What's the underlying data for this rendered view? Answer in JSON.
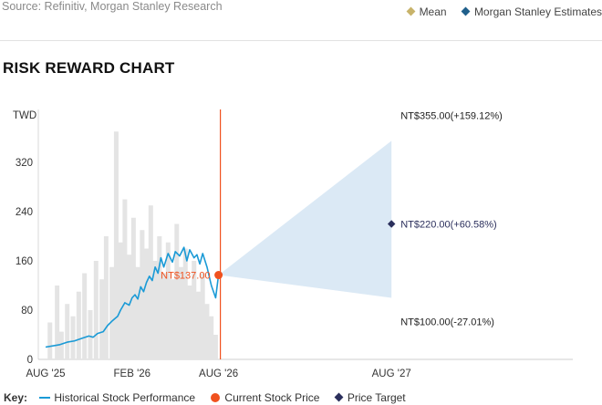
{
  "source": "Source: Refinitiv, Morgan Stanley Research",
  "top_legend": [
    {
      "label": "Mean",
      "color": "#c8b36a",
      "icon": "diamond-icon"
    },
    {
      "label": "Morgan Stanley Estimates",
      "color": "#1f5f8b",
      "icon": "diamond-icon"
    }
  ],
  "title": "RISK REWARD CHART",
  "key": {
    "label": "Key:",
    "items": [
      {
        "label": "Historical Stock Performance",
        "color": "#1a9ad6",
        "icon": "line-icon"
      },
      {
        "label": "Current Stock Price",
        "color": "#f0511e",
        "icon": "dot-icon"
      },
      {
        "label": "Price Target",
        "color": "#2b2f5c",
        "icon": "diamond-icon"
      }
    ]
  },
  "chart_data": {
    "type": "line",
    "ylabel": "TWD",
    "ylim": [
      0,
      400
    ],
    "yticks": [
      0,
      80,
      160,
      240,
      320
    ],
    "xticks": [
      "AUG '25",
      "FEB '26",
      "AUG '26",
      "AUG '27"
    ],
    "historical_price": {
      "name": "Historical Stock Performance",
      "x_months": [
        0,
        0.5,
        1,
        1.5,
        2,
        2.5,
        3,
        3.3,
        3.6,
        4,
        4.3,
        4.6,
        5,
        5.2,
        5.5,
        5.8,
        6,
        6.2,
        6.4,
        6.6,
        6.8,
        7,
        7.2,
        7.4,
        7.6,
        7.8,
        8,
        8.2,
        8.5,
        8.8,
        9,
        9.3,
        9.6,
        9.8,
        10,
        10.3,
        10.5,
        10.7,
        10.9,
        11.2,
        11.5,
        11.8,
        12
      ],
      "values": [
        20,
        22,
        24,
        28,
        30,
        34,
        38,
        36,
        42,
        45,
        55,
        62,
        70,
        80,
        92,
        88,
        100,
        105,
        98,
        118,
        110,
        125,
        135,
        128,
        150,
        140,
        165,
        150,
        172,
        158,
        175,
        168,
        182,
        160,
        178,
        165,
        170,
        155,
        172,
        150,
        120,
        100,
        137
      ]
    },
    "volume_bars": {
      "x_months": [
        0.3,
        0.8,
        1.1,
        1.5,
        1.9,
        2.3,
        2.7,
        3.1,
        3.5,
        3.9,
        4.2,
        4.6,
        4.9,
        5.2,
        5.5,
        5.8,
        6.1,
        6.4,
        6.7,
        7,
        7.3,
        7.6,
        7.9,
        8.2,
        8.5,
        8.8,
        9.1,
        9.4,
        9.7,
        10,
        10.3,
        10.6,
        10.9,
        11.2,
        11.5,
        11.8
      ],
      "values": [
        60,
        120,
        45,
        90,
        70,
        110,
        140,
        80,
        160,
        130,
        200,
        150,
        370,
        190,
        260,
        170,
        230,
        150,
        210,
        180,
        250,
        160,
        200,
        140,
        190,
        130,
        220,
        150,
        180,
        120,
        160,
        110,
        140,
        90,
        70,
        40
      ]
    },
    "current_price": {
      "label": "NT$137.00",
      "value": 137,
      "x_months": 12
    },
    "projection": {
      "bull": {
        "value": 355,
        "label": "NT$355.00(+159.12%)"
      },
      "base": {
        "value": 220,
        "label": "NT$220.00(+60.58%)"
      },
      "bear": {
        "value": 100,
        "label": "NT$100.00(-27.01%)"
      },
      "x_months_end": 24
    }
  }
}
